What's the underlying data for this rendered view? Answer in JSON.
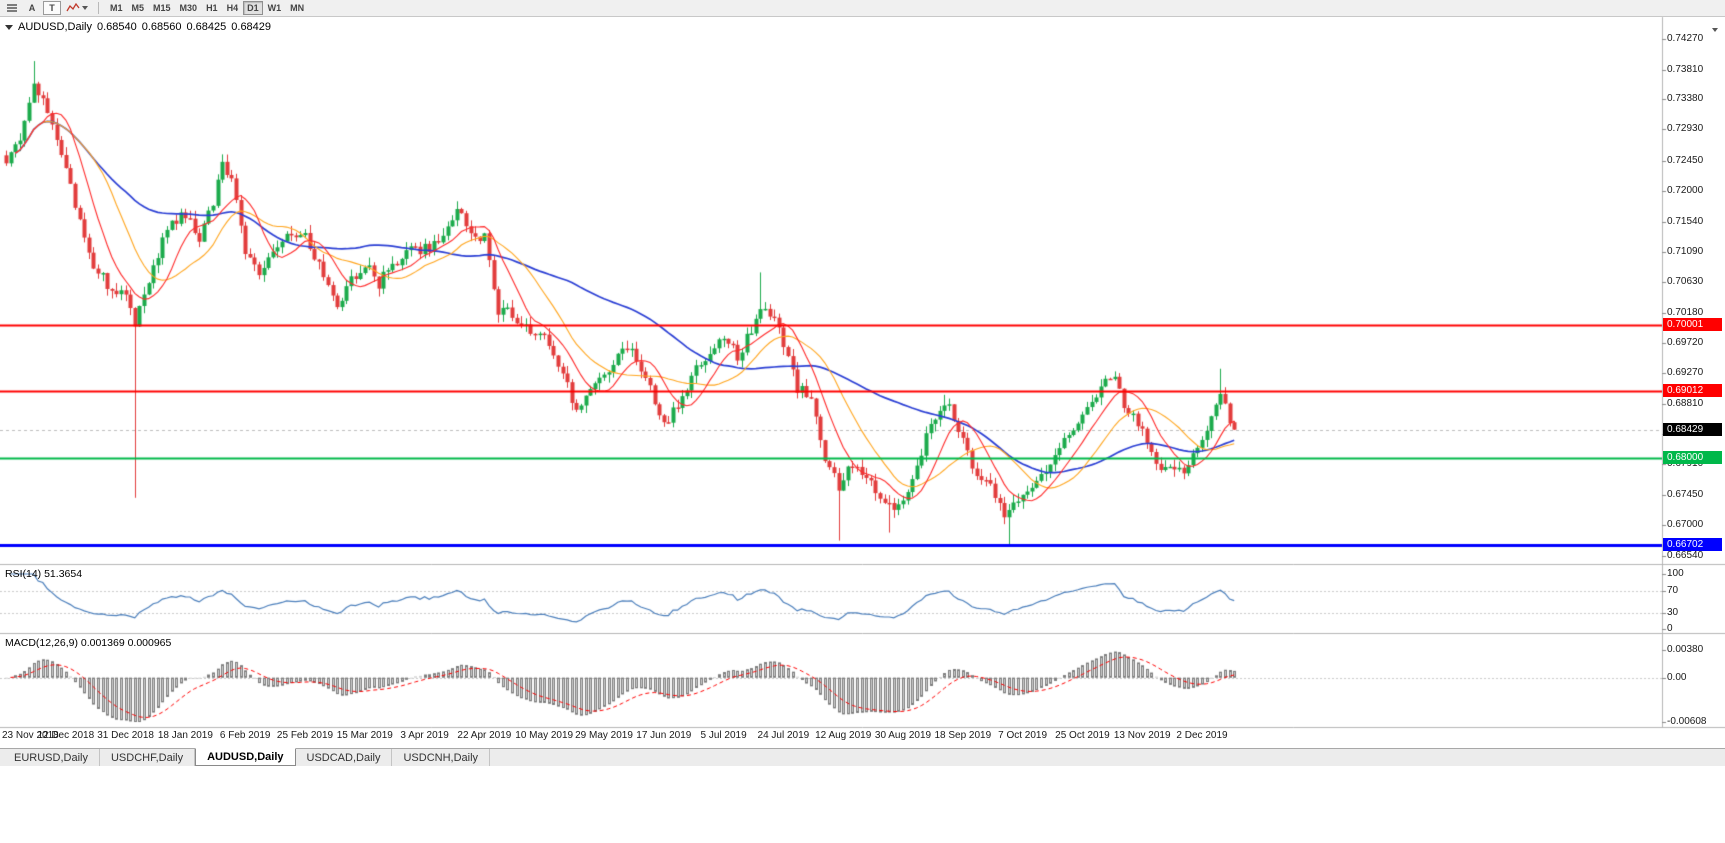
{
  "toolbar": {
    "annotate_label": "A",
    "text_label": "T",
    "timeframes": [
      "M1",
      "M5",
      "M15",
      "M30",
      "H1",
      "H4",
      "D1",
      "W1",
      "MN"
    ],
    "active_timeframe": "D1"
  },
  "chart_header": {
    "symbol": "AUDUSD,Daily",
    "open": "0.68540",
    "high": "0.68560",
    "low": "0.68425",
    "close": "0.68429"
  },
  "tabs": {
    "items": [
      "EURUSD,Daily",
      "USDCHF,Daily",
      "AUDUSD,Daily",
      "USDCAD,Daily",
      "USDCNH,Daily"
    ],
    "active": "AUDUSD,Daily"
  },
  "chart_data": {
    "type": "candlestick",
    "symbol": "AUDUSD",
    "timeframe": "Daily",
    "bars_total": 268,
    "colors": {
      "up": "#1cab4c",
      "down": "#e23d3d",
      "ma_fast": "#ff2a2a",
      "ma_medium": "#ffa51e",
      "ma_slow": "#2b3fd4",
      "rsi": "#4a7ebb",
      "macd_signal": "#ff0000",
      "macd_hist_fill": "#cfcfcf",
      "macd_hist_edge": "#7d7d7d"
    },
    "price_scale_labels": [
      "0.74270",
      "0.73810",
      "0.73380",
      "0.72930",
      "0.72450",
      "0.72000",
      "0.71540",
      "0.71090",
      "0.70630",
      "0.70180",
      "0.69720",
      "0.69270",
      "0.68810",
      "0.68360",
      "0.67910",
      "0.67450",
      "0.67000",
      "0.66540"
    ],
    "date_labels": [
      "23 Nov 2018",
      "12 Dec 2018",
      "31 Dec 2018",
      "18 Jan 2019",
      "6 Feb 2019",
      "25 Feb 2019",
      "15 Mar 2019",
      "3 Apr 2019",
      "22 Apr 2019",
      "10 May 2019",
      "29 May 2019",
      "17 Jun 2019",
      "5 Jul 2019",
      "24 Jul 2019",
      "12 Aug 2019",
      "30 Aug 2019",
      "18 Sep 2019",
      "7 Oct 2019",
      "25 Oct 2019",
      "13 Nov 2019",
      "2 Dec 2019"
    ],
    "date_label_bar_indices": [
      0,
      13,
      26,
      39,
      52,
      65,
      78,
      91,
      104,
      117,
      130,
      143,
      156,
      169,
      182,
      195,
      208,
      221,
      234,
      247,
      260
    ],
    "price_anchors": [
      [
        0,
        0.7245
      ],
      [
        2,
        0.7262
      ],
      [
        4,
        0.73
      ],
      [
        6,
        0.7368
      ],
      [
        8,
        0.733
      ],
      [
        10,
        0.7292
      ],
      [
        13,
        0.7228
      ],
      [
        16,
        0.7155
      ],
      [
        19,
        0.7085
      ],
      [
        22,
        0.706
      ],
      [
        26,
        0.7042
      ],
      [
        28,
        0.7002
      ],
      [
        31,
        0.7062
      ],
      [
        34,
        0.7125
      ],
      [
        37,
        0.7158
      ],
      [
        39,
        0.7168
      ],
      [
        42,
        0.7122
      ],
      [
        45,
        0.7185
      ],
      [
        47,
        0.7248
      ],
      [
        49,
        0.7215
      ],
      [
        52,
        0.7108
      ],
      [
        55,
        0.7082
      ],
      [
        58,
        0.7105
      ],
      [
        62,
        0.7142
      ],
      [
        65,
        0.7128
      ],
      [
        68,
        0.7092
      ],
      [
        72,
        0.7032
      ],
      [
        75,
        0.7068
      ],
      [
        78,
        0.7092
      ],
      [
        81,
        0.7062
      ],
      [
        84,
        0.7088
      ],
      [
        88,
        0.7112
      ],
      [
        91,
        0.7112
      ],
      [
        95,
        0.7128
      ],
      [
        98,
        0.7168
      ],
      [
        101,
        0.7142
      ],
      [
        104,
        0.7128
      ],
      [
        107,
        0.7015
      ],
      [
        110,
        0.7018
      ],
      [
        113,
        0.6992
      ],
      [
        117,
        0.699
      ],
      [
        120,
        0.6942
      ],
      [
        124,
        0.6872
      ],
      [
        127,
        0.6902
      ],
      [
        130,
        0.6922
      ],
      [
        134,
        0.6965
      ],
      [
        136,
        0.6962
      ],
      [
        139,
        0.6922
      ],
      [
        143,
        0.6852
      ],
      [
        146,
        0.6882
      ],
      [
        150,
        0.6932
      ],
      [
        153,
        0.6962
      ],
      [
        156,
        0.6982
      ],
      [
        159,
        0.6952
      ],
      [
        162,
        0.6992
      ],
      [
        164,
        0.7032
      ],
      [
        167,
        0.7012
      ],
      [
        169,
        0.6972
      ],
      [
        172,
        0.6902
      ],
      [
        175,
        0.6896
      ],
      [
        178,
        0.6802
      ],
      [
        181,
        0.6756
      ],
      [
        184,
        0.6792
      ],
      [
        187,
        0.6776
      ],
      [
        190,
        0.6746
      ],
      [
        193,
        0.6722
      ],
      [
        195,
        0.6736
      ],
      [
        198,
        0.6792
      ],
      [
        201,
        0.6852
      ],
      [
        204,
        0.6882
      ],
      [
        206,
        0.6862
      ],
      [
        208,
        0.6822
      ],
      [
        211,
        0.6772
      ],
      [
        214,
        0.6756
      ],
      [
        217,
        0.6712
      ],
      [
        219,
        0.6736
      ],
      [
        221,
        0.6742
      ],
      [
        224,
        0.6762
      ],
      [
        227,
        0.6782
      ],
      [
        230,
        0.6832
      ],
      [
        233,
        0.6852
      ],
      [
        236,
        0.6882
      ],
      [
        239,
        0.6916
      ],
      [
        241,
        0.6926
      ],
      [
        243,
        0.6882
      ],
      [
        245,
        0.6862
      ],
      [
        247,
        0.6842
      ],
      [
        250,
        0.6796
      ],
      [
        253,
        0.6782
      ],
      [
        256,
        0.6776
      ],
      [
        258,
        0.6802
      ],
      [
        260,
        0.6826
      ],
      [
        262,
        0.6856
      ],
      [
        264,
        0.69
      ],
      [
        265,
        0.689
      ],
      [
        266,
        0.6856
      ],
      [
        267,
        0.68429
      ]
    ],
    "wick_overrides": {
      "6": {
        "high": 0.7394
      },
      "28": {
        "low": 0.6741
      },
      "164": {
        "high": 0.7078
      },
      "181": {
        "low": 0.6677
      },
      "192": {
        "low": 0.6689
      },
      "204": {
        "high": 0.6895
      },
      "218": {
        "low": 0.667
      },
      "241": {
        "high": 0.693
      },
      "264": {
        "high": 0.6934
      }
    },
    "last_bar": {
      "open": 0.6854,
      "high": 0.6856,
      "low": 0.68425,
      "close": 0.68429
    },
    "moving_average_periods": {
      "fast": 9,
      "medium": 18,
      "slow": 50
    },
    "horizontal_lines": [
      {
        "label": "0.70001",
        "value": 0.70001,
        "color": "#ff0000",
        "width": 2
      },
      {
        "label": "0.69012",
        "value": 0.69012,
        "color": "#ff0000",
        "width": 2
      },
      {
        "label": "0.68000",
        "value": 0.68,
        "color": "#00b84a",
        "width": 2
      },
      {
        "label": "0.66702",
        "value": 0.66702,
        "color": "#0000ff",
        "width": 3
      }
    ],
    "current_price": {
      "label": "0.68429",
      "value": 0.68429,
      "box_color": "#000000"
    },
    "rsi": {
      "title": "RSI(14) 51.3654",
      "period": 14,
      "value": 51.3654,
      "scale_labels": [
        "100",
        "70",
        "30",
        "0"
      ],
      "scale_values": [
        100,
        70,
        30,
        0
      ],
      "levels": [
        70,
        30
      ],
      "range": [
        0,
        100
      ]
    },
    "macd": {
      "title": "MACD(12,26,9) 0.001369 0.000965",
      "fast": 12,
      "slow": 26,
      "signal": 9,
      "value": 0.001369,
      "signal_value": 0.000965,
      "scale_labels": [
        "0.00380",
        "0.00",
        "-0.00608"
      ],
      "scale_values": [
        0.0038,
        0,
        -0.00608
      ],
      "range": [
        -0.00608,
        0.0038
      ]
    }
  }
}
